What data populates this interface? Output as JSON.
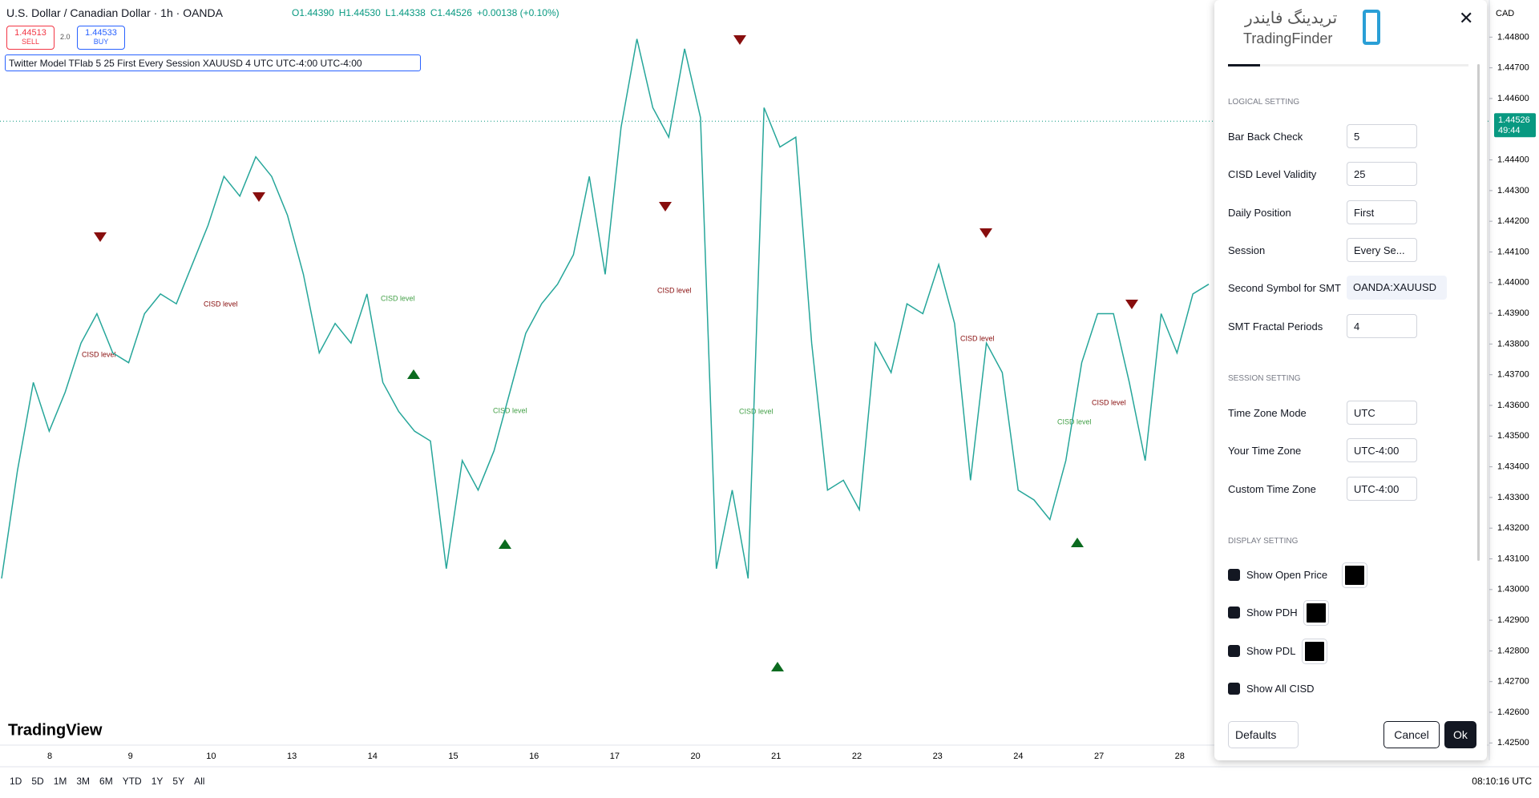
{
  "header": {
    "symbol": "U.S. Dollar / Canadian Dollar · 1h · OANDA",
    "ohlc": [
      "O1.44390",
      "H1.44530",
      "L1.44338",
      "C1.44526",
      "+0.00138 (+0.10%)"
    ],
    "sell_price": "1.44513",
    "sell": "SELL",
    "spread": "2.0",
    "buy_price": "1.44533",
    "buy": "BUY"
  },
  "indicator": "Twitter Model TFlab 5 25 First Every Session XAUUSD 4 UTC UTC-4:00 UTC-4:00",
  "chart": {
    "type": "line",
    "color": "#26a69a",
    "closes": [
      1.43036,
      1.43388,
      1.43675,
      1.43516,
      1.43643,
      1.43803,
      1.43899,
      1.43771,
      1.43739,
      1.43899,
      1.43963,
      1.43931,
      1.44059,
      1.44187,
      1.44346,
      1.44282,
      1.4441,
      1.44346,
      1.44219,
      1.44027,
      1.43771,
      1.43867,
      1.43803,
      1.43963,
      1.43675,
      1.4358,
      1.43516,
      1.43484,
      1.43068,
      1.4342,
      1.43324,
      1.43452,
      1.43643,
      1.43835,
      1.43931,
      1.43995,
      1.44091,
      1.44346,
      1.44027,
      1.44506,
      1.44794,
      1.4457,
      1.44474,
      1.44762,
      1.44538,
      1.43068,
      1.43324,
      1.43036,
      1.4457,
      1.44442,
      1.44474,
      1.43803,
      1.43324,
      1.43356,
      1.4326,
      1.43803,
      1.43707,
      1.43931,
      1.43899,
      1.44059,
      1.43867,
      1.43356,
      1.43803,
      1.43707,
      1.43324,
      1.43292,
      1.43228,
      1.4342,
      1.43739,
      1.43899,
      1.43899,
      1.43675,
      1.4342,
      1.43899,
      1.43771,
      1.43963,
      1.43995
    ],
    "ylim": [
      1.42493,
      1.44921
    ],
    "yticks": [
      {
        "value": 1.448,
        "label": "1.44800"
      },
      {
        "value": 1.447,
        "label": "1.44700"
      },
      {
        "value": 1.446,
        "label": "1.44600"
      },
      {
        "value": 1.444,
        "label": "1.44400"
      },
      {
        "value": 1.443,
        "label": "1.44300"
      },
      {
        "value": 1.442,
        "label": "1.44200"
      },
      {
        "value": 1.441,
        "label": "1.44100"
      },
      {
        "value": 1.44,
        "label": "1.44000"
      },
      {
        "value": 1.439,
        "label": "1.43900"
      },
      {
        "value": 1.438,
        "label": "1.43800"
      },
      {
        "value": 1.437,
        "label": "1.43700"
      },
      {
        "value": 1.436,
        "label": "1.43600"
      },
      {
        "value": 1.435,
        "label": "1.43500"
      },
      {
        "value": 1.434,
        "label": "1.43400"
      },
      {
        "value": 1.433,
        "label": "1.43300"
      },
      {
        "value": 1.432,
        "label": "1.43200"
      },
      {
        "value": 1.431,
        "label": "1.43100"
      },
      {
        "value": 1.43,
        "label": "1.43000"
      },
      {
        "value": 1.429,
        "label": "1.42900"
      },
      {
        "value": 1.428,
        "label": "1.42800"
      },
      {
        "value": 1.427,
        "label": "1.42700"
      },
      {
        "value": 1.426,
        "label": "1.42600"
      },
      {
        "value": 1.425,
        "label": "1.42500"
      }
    ],
    "last_price": {
      "value": 1.44526,
      "label": "1.44526"
    },
    "countdown": "49:44",
    "currency": "CAD",
    "time_labels": [
      "8",
      "9",
      "10",
      "13",
      "14",
      "15",
      "16",
      "17",
      "20",
      "21",
      "22",
      "23",
      "24",
      "27",
      "28"
    ],
    "cisd_label": "CISD level"
  },
  "logo": "TradingView",
  "ranges": [
    "1D",
    "5D",
    "1M",
    "3M",
    "6M",
    "YTD",
    "1Y",
    "5Y",
    "All"
  ],
  "clock": "08:10:16 UTC",
  "dialog": {
    "watermark_fa": "تریدینگ فایندر",
    "watermark_en": "TradingFinder",
    "sections": [
      {
        "title": "LOGICAL SETTING",
        "fields": [
          [
            "Bar Back Check",
            "5"
          ],
          [
            "CISD Level Validity",
            "25"
          ],
          [
            "Daily Position",
            "First"
          ],
          [
            "Session",
            "Every Se..."
          ],
          [
            "Second Symbol for SMT",
            "OANDA:XAUUSD"
          ],
          [
            "SMT Fractal Periods",
            "4"
          ]
        ]
      },
      {
        "title": "SESSION SETTING",
        "fields": [
          [
            "Time Zone Mode",
            "UTC"
          ],
          [
            "Your Time Zone",
            "UTC-4:00"
          ],
          [
            "Custom Time Zone",
            "UTC-4:00"
          ]
        ]
      },
      {
        "title": "DISPLAY SETTING",
        "checks": [
          "Show Open Price",
          "Show PDH",
          "Show PDL",
          "Show All CISD"
        ]
      }
    ],
    "defaults": "Defaults",
    "cancel": "Cancel",
    "ok": "Ok"
  }
}
